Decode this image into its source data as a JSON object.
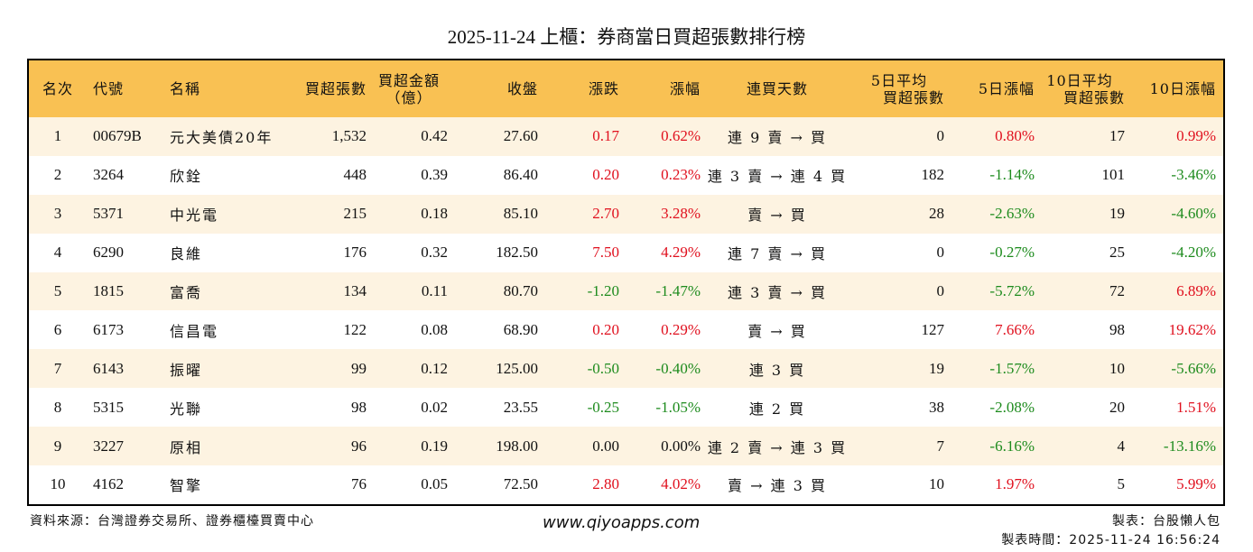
{
  "title": "2025-11-24 上櫃：券商當日買超張數排行榜",
  "colors": {
    "header_bg": "#F9C153",
    "stripe_bg": "#FDF3E1",
    "up": "#E0101E",
    "down": "#1D8B1D",
    "border": "#000000"
  },
  "table": {
    "headers": {
      "rank": "名次",
      "code": "代號",
      "name": "名稱",
      "net_buy_lots": "買超張數",
      "net_buy_amount_l1": "買超金額",
      "net_buy_amount_l2": "（億）",
      "close": "收盤",
      "change": "漲跌",
      "change_pct": "漲幅",
      "streak": "連買天數",
      "avg5_l1": "5日平均",
      "avg5_l2": "買超張數",
      "pct5": "5日漲幅",
      "avg10_l1": "10日平均",
      "avg10_l2": "買超張數",
      "pct10": "10日漲幅"
    },
    "rows": [
      {
        "rank": "1",
        "code": "00679B",
        "name": "元大美債20年",
        "lots": "1,532",
        "amount": "0.42",
        "close": "27.60",
        "change": "0.17",
        "change_dir": "red",
        "pct": "0.62%",
        "pct_dir": "red",
        "streak": "連 9 賣 → 買",
        "avg5": "0",
        "pct5": "0.80%",
        "pct5_dir": "red",
        "avg10": "17",
        "pct10": "0.99%",
        "pct10_dir": "red"
      },
      {
        "rank": "2",
        "code": "3264",
        "name": "欣銓",
        "lots": "448",
        "amount": "0.39",
        "close": "86.40",
        "change": "0.20",
        "change_dir": "red",
        "pct": "0.23%",
        "pct_dir": "red",
        "streak": "連 3 賣 → 連 4 買",
        "avg5": "182",
        "pct5": "-1.14%",
        "pct5_dir": "green",
        "avg10": "101",
        "pct10": "-3.46%",
        "pct10_dir": "green"
      },
      {
        "rank": "3",
        "code": "5371",
        "name": "中光電",
        "lots": "215",
        "amount": "0.18",
        "close": "85.10",
        "change": "2.70",
        "change_dir": "red",
        "pct": "3.28%",
        "pct_dir": "red",
        "streak": "賣 → 買",
        "avg5": "28",
        "pct5": "-2.63%",
        "pct5_dir": "green",
        "avg10": "19",
        "pct10": "-4.60%",
        "pct10_dir": "green"
      },
      {
        "rank": "4",
        "code": "6290",
        "name": "良維",
        "lots": "176",
        "amount": "0.32",
        "close": "182.50",
        "change": "7.50",
        "change_dir": "red",
        "pct": "4.29%",
        "pct_dir": "red",
        "streak": "連 7 賣 → 買",
        "avg5": "0",
        "pct5": "-0.27%",
        "pct5_dir": "green",
        "avg10": "25",
        "pct10": "-4.20%",
        "pct10_dir": "green"
      },
      {
        "rank": "5",
        "code": "1815",
        "name": "富喬",
        "lots": "134",
        "amount": "0.11",
        "close": "80.70",
        "change": "-1.20",
        "change_dir": "green",
        "pct": "-1.47%",
        "pct_dir": "green",
        "streak": "連 3 賣 → 買",
        "avg5": "0",
        "pct5": "-5.72%",
        "pct5_dir": "green",
        "avg10": "72",
        "pct10": "6.89%",
        "pct10_dir": "red"
      },
      {
        "rank": "6",
        "code": "6173",
        "name": "信昌電",
        "lots": "122",
        "amount": "0.08",
        "close": "68.90",
        "change": "0.20",
        "change_dir": "red",
        "pct": "0.29%",
        "pct_dir": "red",
        "streak": "賣 → 買",
        "avg5": "127",
        "pct5": "7.66%",
        "pct5_dir": "red",
        "avg10": "98",
        "pct10": "19.62%",
        "pct10_dir": "red"
      },
      {
        "rank": "7",
        "code": "6143",
        "name": "振曜",
        "lots": "99",
        "amount": "0.12",
        "close": "125.00",
        "change": "-0.50",
        "change_dir": "green",
        "pct": "-0.40%",
        "pct_dir": "green",
        "streak": "連 3 買",
        "avg5": "19",
        "pct5": "-1.57%",
        "pct5_dir": "green",
        "avg10": "10",
        "pct10": "-5.66%",
        "pct10_dir": "green"
      },
      {
        "rank": "8",
        "code": "5315",
        "name": "光聯",
        "lots": "98",
        "amount": "0.02",
        "close": "23.55",
        "change": "-0.25",
        "change_dir": "green",
        "pct": "-1.05%",
        "pct_dir": "green",
        "streak": "連 2 買",
        "avg5": "38",
        "pct5": "-2.08%",
        "pct5_dir": "green",
        "avg10": "20",
        "pct10": "1.51%",
        "pct10_dir": "red"
      },
      {
        "rank": "9",
        "code": "3227",
        "name": "原相",
        "lots": "96",
        "amount": "0.19",
        "close": "198.00",
        "change": "0.00",
        "change_dir": "flat",
        "pct": "0.00%",
        "pct_dir": "flat",
        "streak": "連 2 賣 → 連 3 買",
        "avg5": "7",
        "pct5": "-6.16%",
        "pct5_dir": "green",
        "avg10": "4",
        "pct10": "-13.16%",
        "pct10_dir": "green"
      },
      {
        "rank": "10",
        "code": "4162",
        "name": "智擎",
        "lots": "76",
        "amount": "0.05",
        "close": "72.50",
        "change": "2.80",
        "change_dir": "red",
        "pct": "4.02%",
        "pct_dir": "red",
        "streak": "賣 → 連 3 買",
        "avg5": "10",
        "pct5": "1.97%",
        "pct5_dir": "red",
        "avg10": "5",
        "pct10": "5.99%",
        "pct10_dir": "red"
      }
    ]
  },
  "footer": {
    "source": "資料來源：台灣證券交易所、證券櫃檯買賣中心",
    "website": "www.qiyoapps.com",
    "maker": "製表：台股懶人包",
    "made_time": "製表時間：2025-11-24 16:56:24"
  }
}
